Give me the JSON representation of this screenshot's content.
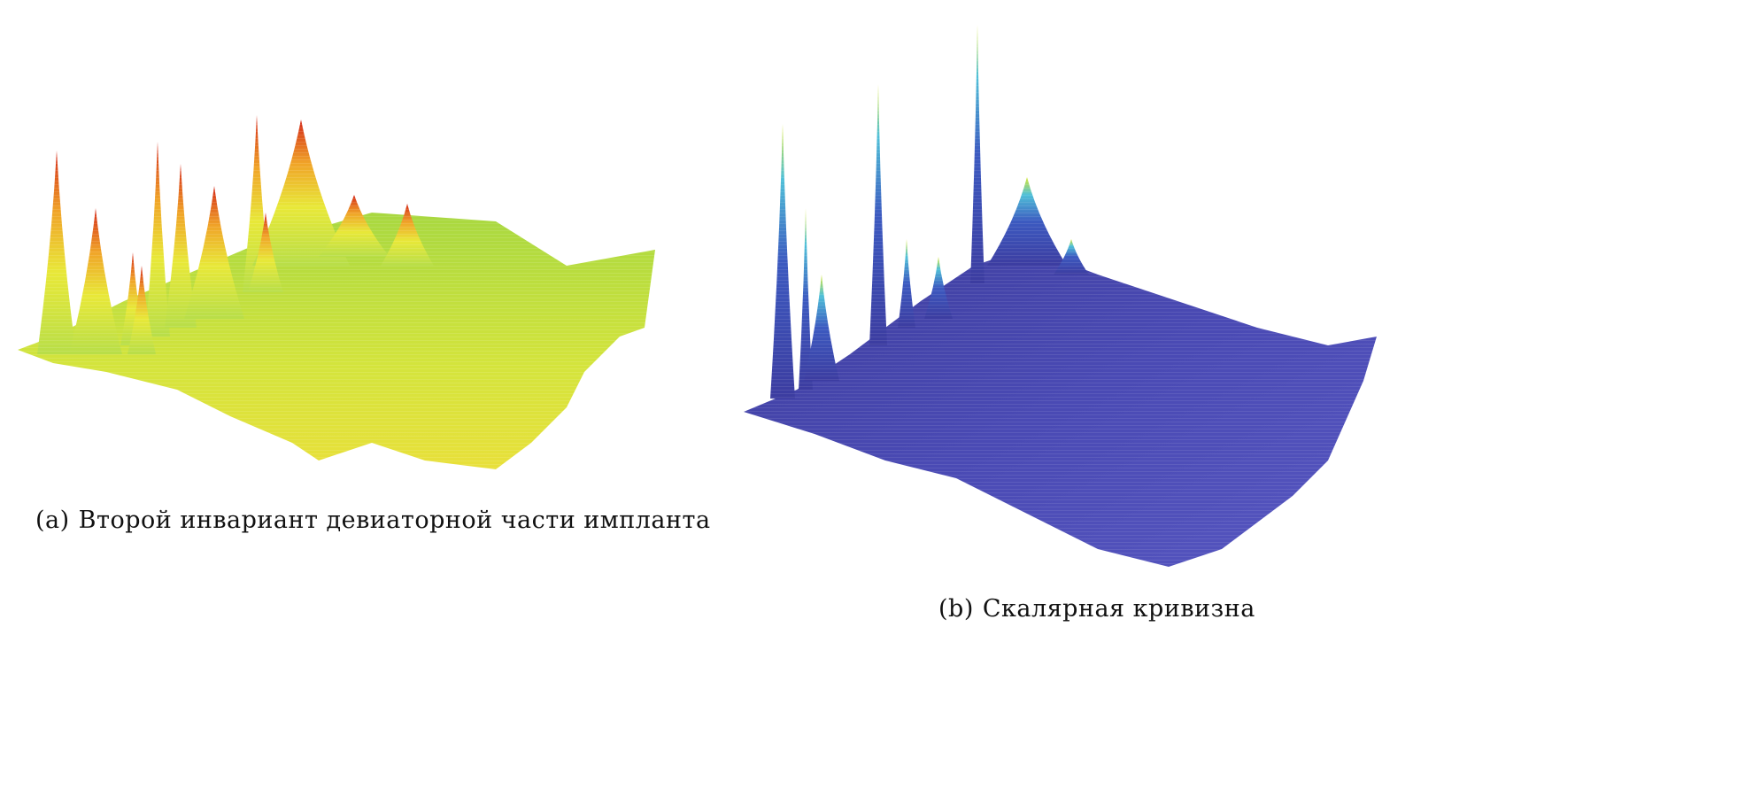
{
  "figures": [
    {
      "label": "(a)",
      "caption": "Второй инвариант девиаторной части импланта",
      "colormap": [
        "#3a3aa8",
        "#4fc3d8",
        "#b8e04a",
        "#f0e030",
        "#f08a20",
        "#d82818"
      ]
    },
    {
      "label": "(b)",
      "caption": "Скалярная кривизна",
      "colormap": [
        "#3c3c9c",
        "#5a5ac0",
        "#4fb0d8",
        "#c8e830"
      ]
    }
  ]
}
